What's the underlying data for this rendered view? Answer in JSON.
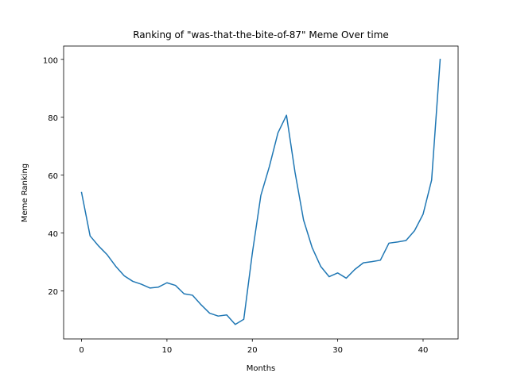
{
  "chart_data": {
    "type": "line",
    "title": "Ranking of \"was-that-the-bite-of-87\" Meme Over time",
    "xlabel": "Months",
    "ylabel": "Meme Ranking",
    "xlim": [
      -2.1,
      44.1
    ],
    "ylim": [
      3.4,
      104.6
    ],
    "xticks": [
      0,
      10,
      20,
      30,
      40
    ],
    "yticks": [
      20,
      40,
      60,
      80,
      100
    ],
    "grid": false,
    "line_color": "#1f77b4",
    "series": [
      {
        "x": [
          0,
          1,
          2,
          3,
          4,
          5,
          6,
          7,
          8,
          9,
          10,
          11,
          12,
          13,
          14,
          15,
          16,
          17,
          18,
          19,
          20,
          21,
          22,
          23,
          24,
          25,
          26,
          27,
          28,
          29,
          30,
          31,
          32,
          33,
          34,
          35,
          36,
          37,
          38,
          39,
          40,
          41,
          42
        ],
        "values": [
          54,
          39,
          35.5,
          32.5,
          28.5,
          25.2,
          23.3,
          22.3,
          21,
          21.3,
          22.8,
          21.9,
          19,
          18.5,
          15.2,
          12.3,
          11.3,
          11.7,
          8.4,
          10.2,
          33,
          53,
          63,
          74.6,
          80.7,
          61,
          44.5,
          35,
          28.5,
          24.9,
          26.2,
          24.4,
          27.4,
          29.7,
          30.1,
          30.6,
          36.5,
          36.9,
          37.4,
          40.8,
          46.5,
          58.3,
          100
        ]
      }
    ]
  }
}
